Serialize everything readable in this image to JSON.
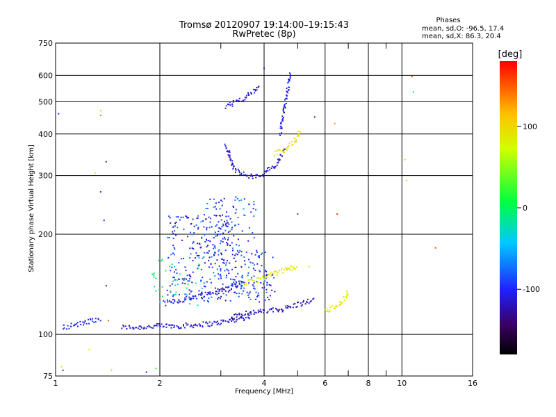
{
  "chart_data": {
    "type": "scatter",
    "title": "Tromsø 20120907 19:14:00–19:15:43",
    "subtitle": "RwPretec (8p)",
    "xlabel": "Frequency [MHz]",
    "ylabel": "Stationary phase Virtual Height [km]",
    "x_scale": "log",
    "y_scale": "log",
    "xlim": [
      1,
      16
    ],
    "ylim": [
      75,
      750
    ],
    "x_ticks": [
      1,
      2,
      4,
      6,
      8,
      10,
      16
    ],
    "x_ticklabels": [
      "1",
      "2",
      "4",
      "6",
      "8",
      "10",
      "16"
    ],
    "x_minor": [
      3,
      5,
      7,
      9
    ],
    "y_ticks": [
      75,
      100,
      200,
      300,
      400,
      500,
      600,
      750
    ],
    "y_ticklabels": [
      "75",
      "100",
      "200",
      "300",
      "400",
      "500",
      "600",
      "750"
    ],
    "grid": true,
    "phase_stats": {
      "heading": "Phases",
      "line_o": "mean, sd,O: -96.5, 17.4",
      "line_x": "mean, sd,X:  86.3, 20.4"
    },
    "colorbar": {
      "label": "[deg]",
      "range": [
        -180,
        180
      ],
      "ticks": [
        100,
        0,
        -100
      ],
      "ticklabels": [
        "100",
        "0",
        "-100"
      ]
    },
    "traces": [
      {
        "x": [
          1.55,
          1.75,
          2.0,
          2.3,
          2.6,
          2.9,
          3.2,
          3.5,
          3.7
        ],
        "y": [
          105,
          105,
          106,
          106,
          107,
          108,
          110,
          112,
          114
        ],
        "phase": -112
      },
      {
        "x": [
          3.2,
          3.5,
          4.0,
          4.5,
          5.0,
          5.6
        ],
        "y": [
          112,
          116,
          117,
          119,
          123,
          127
        ],
        "phase": -118
      },
      {
        "x": [
          2.05,
          2.4,
          2.8,
          3.2,
          3.5
        ],
        "y": [
          124,
          128,
          133,
          138,
          145
        ],
        "phase": -108
      },
      {
        "x": [
          3.1,
          3.3,
          3.6,
          3.9,
          4.3,
          4.6
        ],
        "y": [
          370,
          310,
          298,
          300,
          320,
          360
        ],
        "phase": -112
      },
      {
        "x": [
          4.45,
          4.55,
          4.65,
          4.75
        ],
        "y": [
          400,
          460,
          520,
          610
        ],
        "phase": -105
      },
      {
        "x": [
          4.3,
          4.6,
          4.9,
          5.1
        ],
        "y": [
          350,
          360,
          380,
          410
        ],
        "phase": 95
      },
      {
        "x": [
          3.5,
          4.0,
          4.5,
          5.0
        ],
        "y": [
          142,
          148,
          155,
          160
        ],
        "phase": 92
      },
      {
        "x": [
          6.0,
          6.5,
          6.8,
          7.0
        ],
        "y": [
          117,
          122,
          127,
          135
        ],
        "phase": 90
      },
      {
        "x": [
          1.05,
          1.2,
          1.35
        ],
        "y": [
          105,
          108,
          112
        ],
        "phase": -100
      },
      {
        "x": [
          3.1,
          3.3,
          3.6,
          3.9
        ],
        "y": [
          480,
          500,
          520,
          560
        ],
        "phase": -110
      }
    ],
    "scatter_clouds": [
      {
        "x": [
          2.1,
          3.3
        ],
        "y": [
          125,
          230
        ],
        "phase": -100,
        "count": 260
      },
      {
        "x": [
          2.6,
          3.8
        ],
        "y": [
          140,
          260
        ],
        "phase": -85,
        "count": 120
      },
      {
        "x": [
          3.3,
          4.3
        ],
        "y": [
          125,
          180
        ],
        "phase": -95,
        "count": 90
      },
      {
        "x": [
          1.9,
          2.7
        ],
        "y": [
          120,
          170
        ],
        "phase": -20,
        "count": 40
      }
    ],
    "scatter_points": [
      {
        "x": 1.35,
        "y": 470,
        "phase": 110
      },
      {
        "x": 1.35,
        "y": 455,
        "phase": 140
      },
      {
        "x": 1.3,
        "y": 305,
        "phase": 95
      },
      {
        "x": 1.35,
        "y": 268,
        "phase": -100
      },
      {
        "x": 1.4,
        "y": 330,
        "phase": -100
      },
      {
        "x": 1.38,
        "y": 220,
        "phase": -110
      },
      {
        "x": 1.4,
        "y": 140,
        "phase": -112
      },
      {
        "x": 1.42,
        "y": 110,
        "phase": 150
      },
      {
        "x": 1.04,
        "y": 80,
        "phase": 100
      },
      {
        "x": 1.05,
        "y": 78,
        "phase": -100
      },
      {
        "x": 1.45,
        "y": 78,
        "phase": 40
      },
      {
        "x": 1.95,
        "y": 79,
        "phase": 10
      },
      {
        "x": 1.83,
        "y": 77,
        "phase": -110
      },
      {
        "x": 1.25,
        "y": 90,
        "phase": 90
      },
      {
        "x": 6.4,
        "y": 430,
        "phase": 130
      },
      {
        "x": 6.5,
        "y": 230,
        "phase": 160
      },
      {
        "x": 10.7,
        "y": 595,
        "phase": 150
      },
      {
        "x": 10.8,
        "y": 535,
        "phase": -20
      },
      {
        "x": 10.2,
        "y": 335,
        "phase": 100
      },
      {
        "x": 10.3,
        "y": 290,
        "phase": 110
      },
      {
        "x": 12.5,
        "y": 182,
        "phase": 160
      },
      {
        "x": 5.6,
        "y": 450,
        "phase": -100
      },
      {
        "x": 4.0,
        "y": 630,
        "phase": -110
      },
      {
        "x": 5.0,
        "y": 230,
        "phase": -90
      },
      {
        "x": 5.4,
        "y": 160,
        "phase": 80
      },
      {
        "x": 1.02,
        "y": 460,
        "phase": -100
      }
    ]
  }
}
